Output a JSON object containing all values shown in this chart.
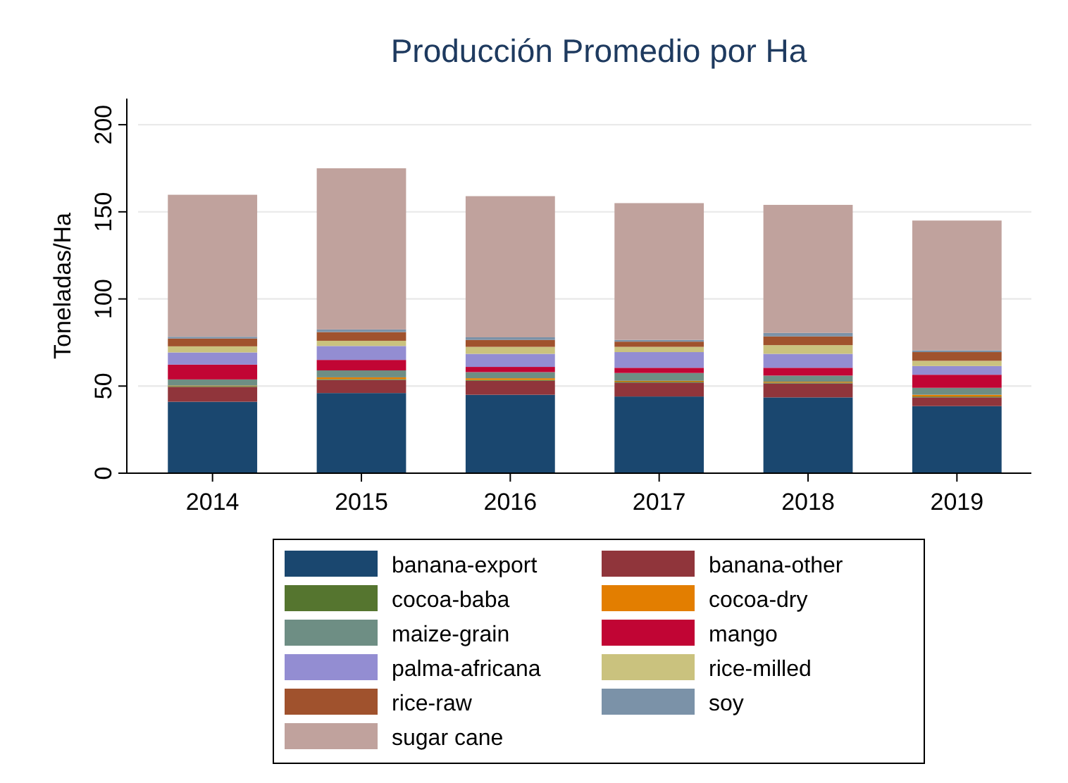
{
  "chart_data": {
    "type": "bar",
    "stacked": true,
    "title": "Producción Promedio por Ha",
    "ylabel": "Toneladas/Ha",
    "categories": [
      "2014",
      "2015",
      "2016",
      "2017",
      "2018",
      "2019"
    ],
    "ylim": [
      0,
      215
    ],
    "yticks": [
      0,
      50,
      100,
      150,
      200
    ],
    "grid": "y",
    "legend": "bottom",
    "series": [
      {
        "name": "banana-export",
        "color": "#1a476f",
        "values": [
          41,
          46,
          45,
          44,
          43.5,
          38.5
        ]
      },
      {
        "name": "banana-other",
        "color": "#90353b",
        "values": [
          8.5,
          7.5,
          8,
          8,
          8,
          5
        ]
      },
      {
        "name": "cocoa-baba",
        "color": "#55752f",
        "values": [
          0.5,
          0.5,
          0.5,
          0.5,
          0.5,
          0.5
        ]
      },
      {
        "name": "cocoa-dry",
        "color": "#e37e00",
        "values": [
          0.3,
          1,
          1,
          0.5,
          0.5,
          1
        ]
      },
      {
        "name": "maize-grain",
        "color": "#6e8e84",
        "values": [
          3.5,
          4,
          3.5,
          4.5,
          3.5,
          4
        ]
      },
      {
        "name": "mango",
        "color": "#c10534",
        "values": [
          8.5,
          6,
          3,
          3,
          4.5,
          7.5
        ]
      },
      {
        "name": "palma-africana",
        "color": "#938dd2",
        "values": [
          7,
          8,
          7.5,
          9,
          8,
          5
        ]
      },
      {
        "name": "rice-milled",
        "color": "#cac27e",
        "values": [
          3.5,
          3,
          4,
          3,
          5,
          3
        ]
      },
      {
        "name": "rice-raw",
        "color": "#a0522d",
        "values": [
          4.5,
          5,
          4,
          3,
          5,
          5
        ]
      },
      {
        "name": "soy",
        "color": "#7b92a8",
        "values": [
          1,
          1.5,
          1.5,
          1,
          2,
          1
        ]
      },
      {
        "name": "sugar cane",
        "color": "#c0a29d",
        "values": [
          81.5,
          92.5,
          81,
          78.5,
          73.5,
          74.5
        ]
      }
    ]
  }
}
